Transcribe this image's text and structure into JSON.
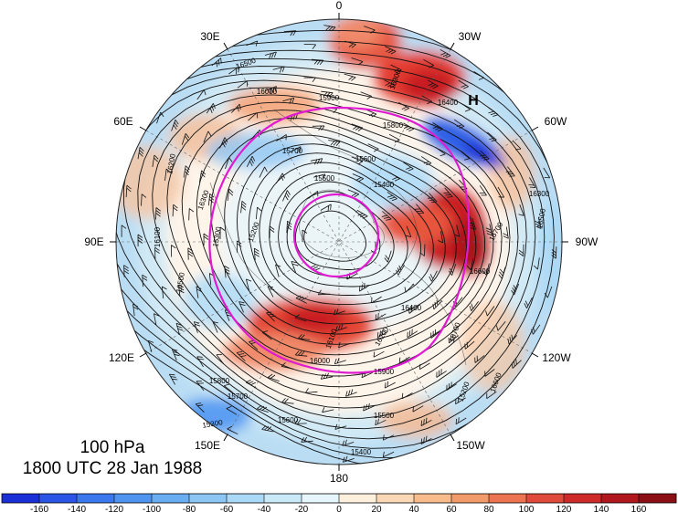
{
  "map": {
    "projection": "polar-stereographic",
    "hemisphere": "north",
    "longitude_labels": [
      "0",
      "30W",
      "60W",
      "90W",
      "120W",
      "150W",
      "180",
      "150E",
      "120E",
      "90E",
      "60E",
      "30E"
    ],
    "field_shaded": "anomaly",
    "contour_field": "geopotential height",
    "highlight_contour_color": "#e01ad2",
    "pressure_marker": "H"
  },
  "title": {
    "level": "100 hPa",
    "time": "1800 UTC 28 Jan 1988"
  },
  "contour_labels": [
    "16500",
    "16300",
    "16400",
    "16200",
    "16100",
    "16000",
    "15900",
    "15800",
    "15700",
    "15600",
    "15500",
    "15400",
    "15300",
    "15200",
    "16600",
    "16700"
  ],
  "colorbar": {
    "ticks": [
      "-160",
      "-140",
      "-120",
      "-100",
      "-80",
      "-60",
      "-40",
      "-20",
      "0",
      "20",
      "40",
      "60",
      "80",
      "100",
      "120",
      "140",
      "160"
    ],
    "colors": [
      "#1a2fd6",
      "#2a55e6",
      "#3b78ee",
      "#4f95f0",
      "#6aaef2",
      "#8cc6f5",
      "#aad9f7",
      "#c9e9f9",
      "#e6f6fc",
      "#fdf0dd",
      "#fbd8b5",
      "#f7bb8c",
      "#f29b6a",
      "#ec7451",
      "#e04a3a",
      "#cf2a2a",
      "#b0181e",
      "#8c0f16"
    ]
  }
}
